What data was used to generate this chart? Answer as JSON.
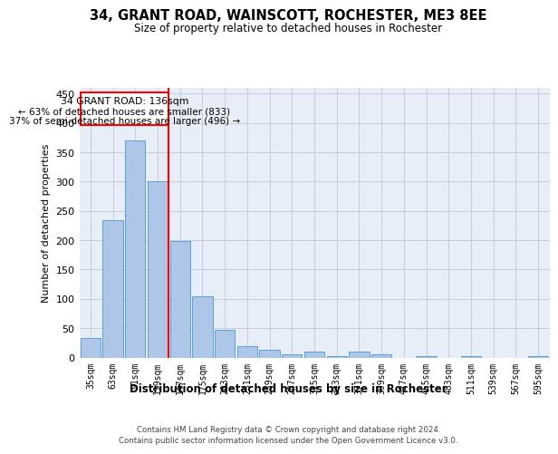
{
  "title": "34, GRANT ROAD, WAINSCOTT, ROCHESTER, ME3 8EE",
  "subtitle": "Size of property relative to detached houses in Rochester",
  "xlabel": "Distribution of detached houses by size in Rochester",
  "ylabel": "Number of detached properties",
  "bar_color": "#aec6e8",
  "bar_edge_color": "#5a9fd4",
  "background_color": "#e8eef8",
  "grid_color": "#c0c8d8",
  "categories": [
    "35sqm",
    "63sqm",
    "91sqm",
    "119sqm",
    "147sqm",
    "175sqm",
    "203sqm",
    "231sqm",
    "259sqm",
    "287sqm",
    "315sqm",
    "343sqm",
    "371sqm",
    "399sqm",
    "427sqm",
    "455sqm",
    "483sqm",
    "511sqm",
    "539sqm",
    "567sqm",
    "595sqm"
  ],
  "values": [
    33,
    235,
    370,
    300,
    198,
    105,
    47,
    20,
    13,
    5,
    10,
    3,
    10,
    5,
    0,
    3,
    0,
    3,
    0,
    0,
    3
  ],
  "ylim": [
    0,
    460
  ],
  "yticks": [
    0,
    50,
    100,
    150,
    200,
    250,
    300,
    350,
    400,
    450
  ],
  "vline_x": 3.5,
  "ann_line1": "34 GRANT ROAD: 136sqm",
  "ann_line2": "← 63% of detached houses are smaller (833)",
  "ann_line3": "37% of semi-detached houses are larger (496) →",
  "footer_line1": "Contains HM Land Registry data © Crown copyright and database right 2024.",
  "footer_line2": "Contains public sector information licensed under the Open Government Licence v3.0."
}
